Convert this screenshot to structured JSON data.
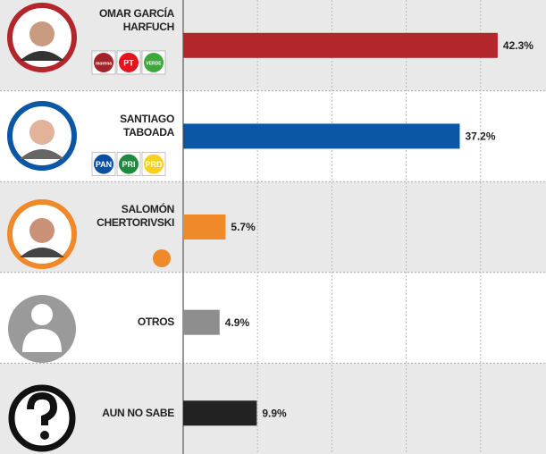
{
  "chart_data": {
    "type": "bar",
    "orientation": "horizontal",
    "categories": [
      "OMAR GARCÍA HARFUCH",
      "SANTIAGO TABOADA",
      "SALOMÓN CHERTORIVSKI",
      "OTROS",
      "AUN NO SABE"
    ],
    "values": [
      42.3,
      37.2,
      5.7,
      4.9,
      9.9
    ],
    "value_labels": [
      "42.3%",
      "37.2%",
      "5.7%",
      "4.9%",
      "9.9%"
    ],
    "colors": [
      "#b3262c",
      "#0c57a5",
      "#f0892a",
      "#8e8e8e",
      "#222222"
    ],
    "parties": [
      [
        {
          "name": "morena",
          "color": "#a3232a"
        },
        {
          "name": "PT",
          "color": "#e3141f"
        },
        {
          "name": "VERDE",
          "color": "#3ea83a"
        }
      ],
      [
        {
          "name": "PAN",
          "color": "#0b4fa0"
        },
        {
          "name": "PRI",
          "color": "#1f8a3c"
        },
        {
          "name": "PRD",
          "color": "#f7d21a"
        }
      ],
      [],
      [],
      []
    ],
    "xlim": [
      0,
      48.8
    ],
    "xticks": [
      0,
      10,
      20,
      30,
      40
    ],
    "grid": true
  }
}
